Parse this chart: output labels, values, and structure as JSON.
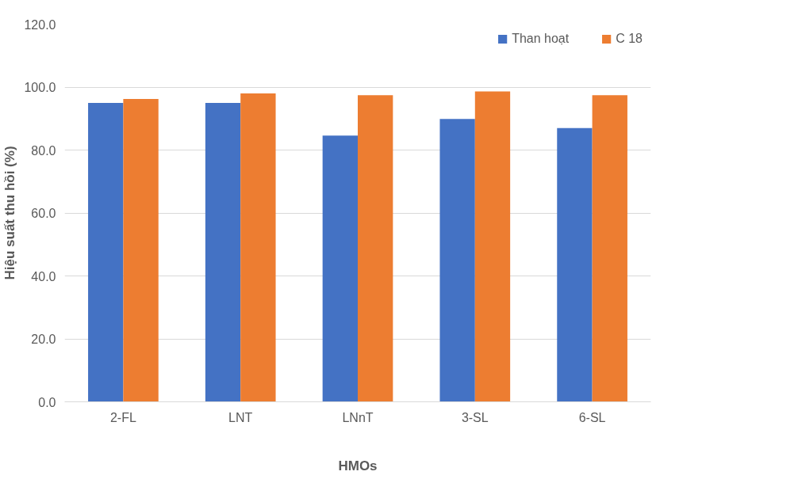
{
  "chart_data": {
    "type": "bar",
    "xlabel": "HMOs",
    "ylabel": "Hiệu suất thu hồi (%)",
    "categories": [
      "2-FL",
      "LNT",
      "LNnT",
      "3-SL",
      "6-SL"
    ],
    "series": [
      {
        "name": "Than hoạt",
        "color": "#4472c4",
        "values": [
          95.0,
          95.0,
          84.6,
          89.9,
          87.0
        ]
      },
      {
        "name": "C 18",
        "color": "#ed7d31",
        "values": [
          96.2,
          98.0,
          97.4,
          98.6,
          97.4
        ]
      }
    ],
    "ylim": [
      0,
      120
    ],
    "yticks": [
      {
        "value": 0,
        "label": "0.0"
      },
      {
        "value": 20,
        "label": "20.0"
      },
      {
        "value": 40,
        "label": "40.0"
      },
      {
        "value": 60,
        "label": "60.0"
      },
      {
        "value": 80,
        "label": "80.0"
      },
      {
        "value": 100,
        "label": "100.0"
      },
      {
        "value": 120,
        "label": "120.0"
      }
    ],
    "grid": "y",
    "legend": "top right"
  }
}
